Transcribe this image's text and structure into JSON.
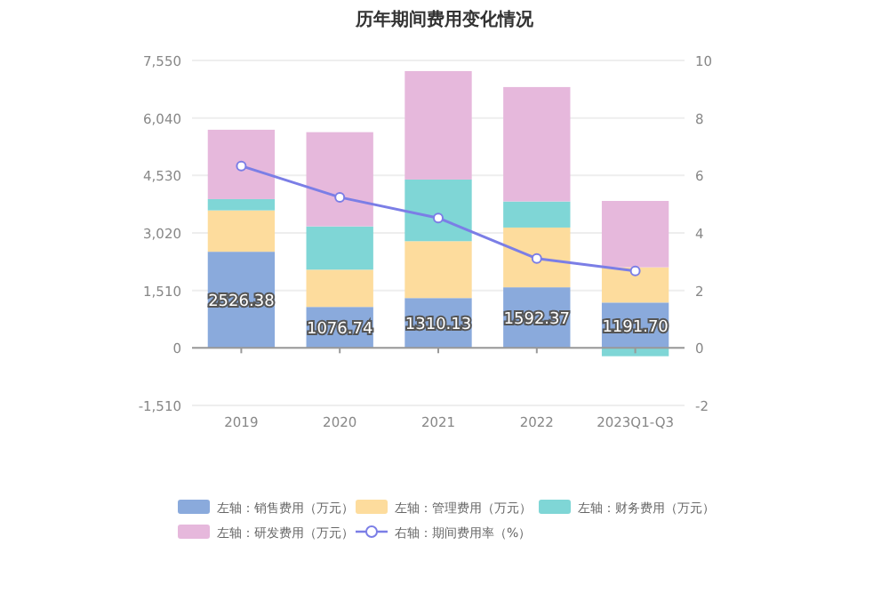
{
  "chart_data": {
    "type": "bar",
    "title": "历年期间费用变化情况",
    "categories": [
      "2019",
      "2020",
      "2021",
      "2022",
      "2023Q1-Q3"
    ],
    "stacked": true,
    "series": [
      {
        "name": "左轴：销售费用（万元）",
        "color": "#8aaadc",
        "values": [
          2526.38,
          1076.74,
          1310.13,
          1592.37,
          1191.7
        ],
        "value_labels": [
          "2526.38",
          "1076.74",
          "1310.13",
          "1592.37",
          "1191.70"
        ]
      },
      {
        "name": "左轴：管理费用（万元）",
        "color": "#fddc9d",
        "values": [
          1086,
          978,
          1493,
          1569,
          925
        ]
      },
      {
        "name": "左轴：财务费用（万元）",
        "color": "#7fd6d6",
        "values": [
          296,
          1137,
          1619,
          685,
          -218
        ]
      },
      {
        "name": "左轴：研发费用（万元）",
        "color": "#e6b8dc",
        "values": [
          1822,
          2475,
          2849,
          3005,
          1744
        ]
      },
      {
        "name": "右轴：期间费用率（%）",
        "type": "line",
        "axis": "y2",
        "color": "#7b7ee6",
        "marker": "circle",
        "values": [
          6.33,
          5.24,
          4.52,
          3.11,
          2.68
        ]
      }
    ],
    "ylim": [
      -1510,
      7550
    ],
    "yticks": [
      {
        "value": -1510,
        "label": "-1,510"
      },
      0,
      {
        "value": 1510,
        "label": "1,510"
      },
      {
        "value": 3020,
        "label": "3,020"
      },
      {
        "value": 4530,
        "label": "4,530"
      },
      {
        "value": 6040,
        "label": "6,040"
      },
      {
        "value": 7550,
        "label": "7,550"
      }
    ],
    "y2lim": [
      -2,
      10
    ],
    "y2ticks": [
      -2,
      0,
      2,
      4,
      6,
      8,
      10
    ],
    "grid": "y",
    "legend": "bottom"
  }
}
